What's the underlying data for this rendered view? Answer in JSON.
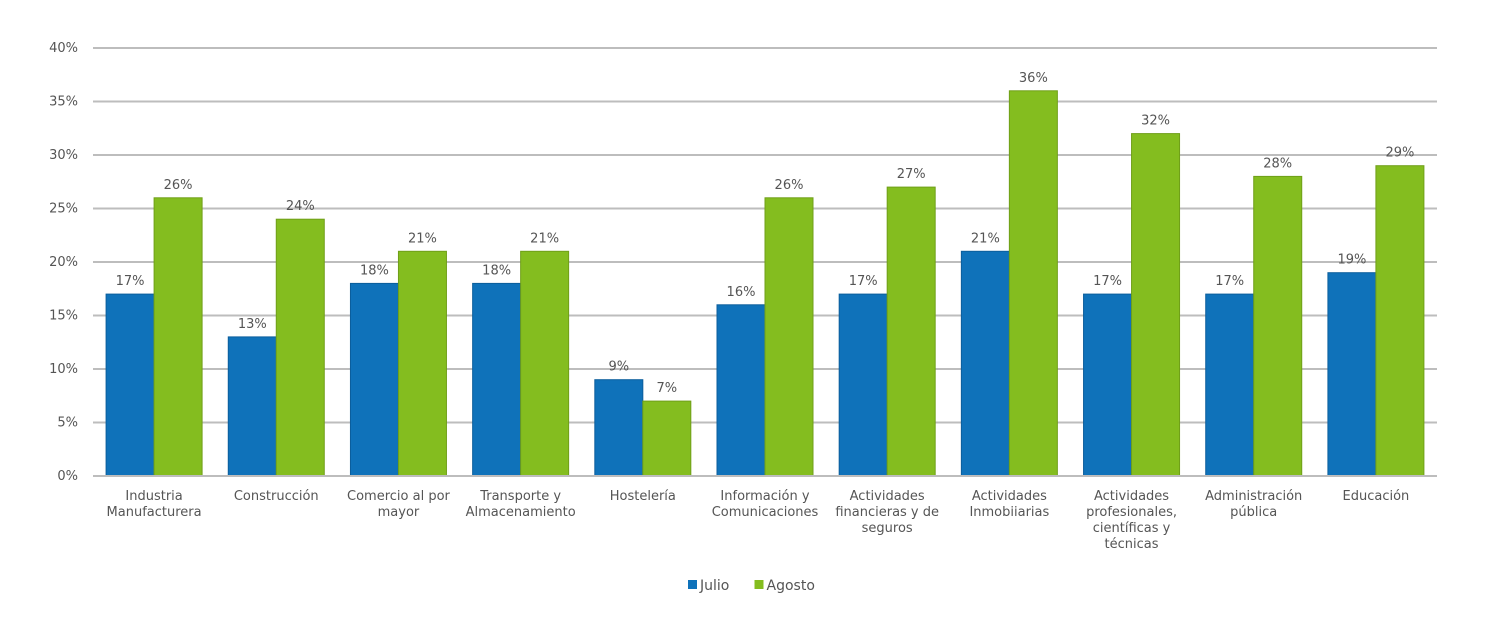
{
  "chart_data": {
    "type": "bar",
    "title": "",
    "xlabel": "",
    "ylabel": "",
    "ylim": [
      0,
      40
    ],
    "yticks": [
      "0%",
      "5%",
      "10%",
      "15%",
      "20%",
      "25%",
      "30%",
      "35%",
      "40%"
    ],
    "grid": true,
    "legend_position": "bottom",
    "categories": [
      [
        "Industria",
        "Manufacturera"
      ],
      [
        "Construcción"
      ],
      [
        "Comercio al por",
        "mayor"
      ],
      [
        "Transporte y",
        "Almacenamiento"
      ],
      [
        "Hostelería"
      ],
      [
        "Información y",
        "Comunicaciones"
      ],
      [
        "Actividades",
        "financieras y de",
        "seguros"
      ],
      [
        "Actividades",
        "Inmobiiarias"
      ],
      [
        "Actividades",
        "profesionales,",
        "científicas y",
        "técnicas"
      ],
      [
        "Administración",
        "pública"
      ],
      [
        "Educación"
      ]
    ],
    "series": [
      {
        "name": "Julio",
        "color": "#0F72BA",
        "values": [
          17,
          13,
          18,
          18,
          9,
          16,
          17,
          21,
          17,
          17,
          19
        ],
        "labels": [
          "17%",
          "13%",
          "18%",
          "18%",
          "9%",
          "16%",
          "17%",
          "21%",
          "17%",
          "17%",
          "19%"
        ]
      },
      {
        "name": "Agosto",
        "color": "#84BD1F",
        "values": [
          26,
          24,
          21,
          21,
          7,
          26,
          27,
          36,
          32,
          28,
          29
        ],
        "labels": [
          "26%",
          "24%",
          "21%",
          "21%",
          "7%",
          "26%",
          "27%",
          "36%",
          "32%",
          "28%",
          "29%"
        ]
      }
    ]
  }
}
